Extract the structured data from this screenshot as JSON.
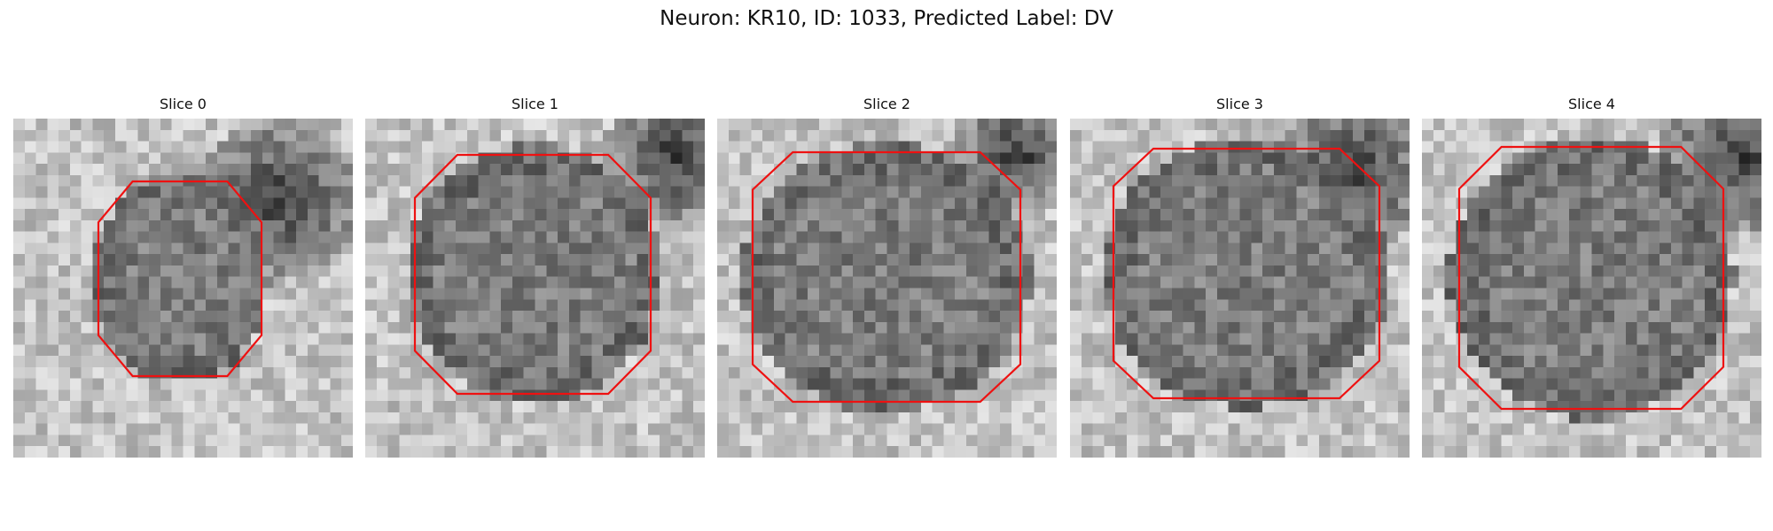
{
  "figure": {
    "title": "Neuron: KR10, ID: 1033, Predicted Label: DV"
  },
  "panels": [
    {
      "title": "Slice 0"
    },
    {
      "title": "Slice 1"
    },
    {
      "title": "Slice 2"
    },
    {
      "title": "Slice 3"
    },
    {
      "title": "Slice 4"
    }
  ],
  "colors": {
    "contour": "#ee1111",
    "background": "#ffffff"
  }
}
